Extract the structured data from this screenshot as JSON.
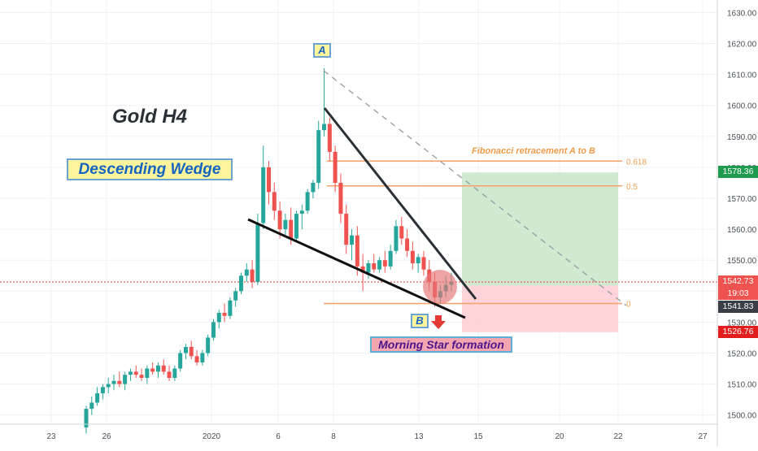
{
  "header": {
    "title": "Gold H4",
    "pattern_label": "Descending Wedge",
    "formation_label": "Morning Star formation",
    "point_a": "A",
    "point_b": "B",
    "fib_title": "Fibonacci retracement A to B"
  },
  "colors": {
    "up": "#26a69a",
    "down": "#ef5350",
    "fib": "#f5a06a",
    "target_zone": "#c8e6c9",
    "stop_zone": "#ffcdd2",
    "grid": "#eef0f3"
  },
  "price_tags": {
    "target": "1578.36",
    "current": "1542.73",
    "countdown": "19:03",
    "entry": "1541.83",
    "stop": "1526.76"
  },
  "chart_data": {
    "type": "candlestick",
    "title": "Gold H4",
    "ylim": [
      1495,
      1635
    ],
    "y_ticks": [
      "1500.00",
      "1510.00",
      "1520.00",
      "1530.00",
      "1540.00",
      "1550.00",
      "1560.00",
      "1570.00",
      "1580.00",
      "1590.00",
      "1600.00",
      "1610.00",
      "1620.00",
      "1630.00"
    ],
    "x_ticks": [
      "23",
      "26",
      "2020",
      "6",
      "8",
      "13",
      "15",
      "20",
      "22",
      "27"
    ],
    "fib_levels": [
      {
        "label": "0.618",
        "price": 1582
      },
      {
        "label": "0.5",
        "price": 1574
      },
      {
        "label": "0",
        "price": 1536
      }
    ],
    "trade": {
      "target": 1578.36,
      "entry": 1541.83,
      "stop": 1526.76
    },
    "current_price": 1542.73,
    "candles": [
      [
        1496,
        1503,
        1494,
        1502
      ],
      [
        1502,
        1506,
        1500,
        1504
      ],
      [
        1504,
        1509,
        1503,
        1507
      ],
      [
        1507,
        1510,
        1505,
        1509
      ],
      [
        1509,
        1512,
        1507,
        1510
      ],
      [
        1510,
        1513,
        1508,
        1511
      ],
      [
        1511,
        1514,
        1509,
        1510
      ],
      [
        1510,
        1514,
        1508,
        1513
      ],
      [
        1513,
        1515,
        1511,
        1514
      ],
      [
        1514,
        1516,
        1512,
        1513
      ],
      [
        1513,
        1515,
        1511,
        1512
      ],
      [
        1512,
        1516,
        1510,
        1515
      ],
      [
        1515,
        1517,
        1513,
        1514
      ],
      [
        1514,
        1517,
        1512,
        1516
      ],
      [
        1516,
        1518,
        1513,
        1514
      ],
      [
        1514,
        1516,
        1511,
        1512
      ],
      [
        1512,
        1516,
        1511,
        1515
      ],
      [
        1515,
        1521,
        1514,
        1520
      ],
      [
        1520,
        1523,
        1518,
        1522
      ],
      [
        1522,
        1524,
        1518,
        1519
      ],
      [
        1519,
        1521,
        1516,
        1517
      ],
      [
        1517,
        1521,
        1516,
        1520
      ],
      [
        1520,
        1526,
        1519,
        1525
      ],
      [
        1525,
        1531,
        1524,
        1530
      ],
      [
        1530,
        1534,
        1528,
        1533
      ],
      [
        1533,
        1536,
        1530,
        1532
      ],
      [
        1532,
        1538,
        1531,
        1537
      ],
      [
        1537,
        1541,
        1535,
        1540
      ],
      [
        1540,
        1546,
        1539,
        1545
      ],
      [
        1545,
        1549,
        1543,
        1547
      ],
      [
        1547,
        1550,
        1541,
        1543
      ],
      [
        1543,
        1565,
        1542,
        1562
      ],
      [
        1562,
        1587,
        1560,
        1580
      ],
      [
        1580,
        1582,
        1568,
        1572
      ],
      [
        1572,
        1575,
        1563,
        1566
      ],
      [
        1566,
        1569,
        1557,
        1560
      ],
      [
        1560,
        1565,
        1558,
        1563
      ],
      [
        1563,
        1567,
        1555,
        1557
      ],
      [
        1557,
        1566,
        1556,
        1565
      ],
      [
        1565,
        1568,
        1560,
        1566
      ],
      [
        1566,
        1573,
        1565,
        1572
      ],
      [
        1572,
        1576,
        1570,
        1575
      ],
      [
        1575,
        1595,
        1573,
        1592
      ],
      [
        1592,
        1612,
        1590,
        1594
      ],
      [
        1594,
        1596,
        1582,
        1585
      ],
      [
        1585,
        1587,
        1572,
        1575
      ],
      [
        1575,
        1578,
        1562,
        1565
      ],
      [
        1565,
        1568,
        1552,
        1555
      ],
      [
        1555,
        1560,
        1550,
        1558
      ],
      [
        1558,
        1561,
        1545,
        1548
      ],
      [
        1548,
        1552,
        1540,
        1546
      ],
      [
        1546,
        1550,
        1544,
        1549
      ],
      [
        1549,
        1552,
        1546,
        1547
      ],
      [
        1547,
        1551,
        1546,
        1550
      ],
      [
        1550,
        1553,
        1546,
        1548
      ],
      [
        1548,
        1555,
        1547,
        1553
      ],
      [
        1553,
        1563,
        1552,
        1561
      ],
      [
        1561,
        1564,
        1555,
        1557
      ],
      [
        1557,
        1560,
        1551,
        1553
      ],
      [
        1553,
        1556,
        1547,
        1549
      ],
      [
        1549,
        1552,
        1546,
        1551
      ],
      [
        1551,
        1553,
        1545,
        1547
      ],
      [
        1547,
        1550,
        1540,
        1543
      ],
      [
        1543,
        1546,
        1535,
        1538
      ],
      [
        1538,
        1542,
        1536,
        1540
      ],
      [
        1540,
        1545,
        1538,
        1542
      ],
      [
        1542,
        1546,
        1540,
        1543
      ]
    ]
  }
}
